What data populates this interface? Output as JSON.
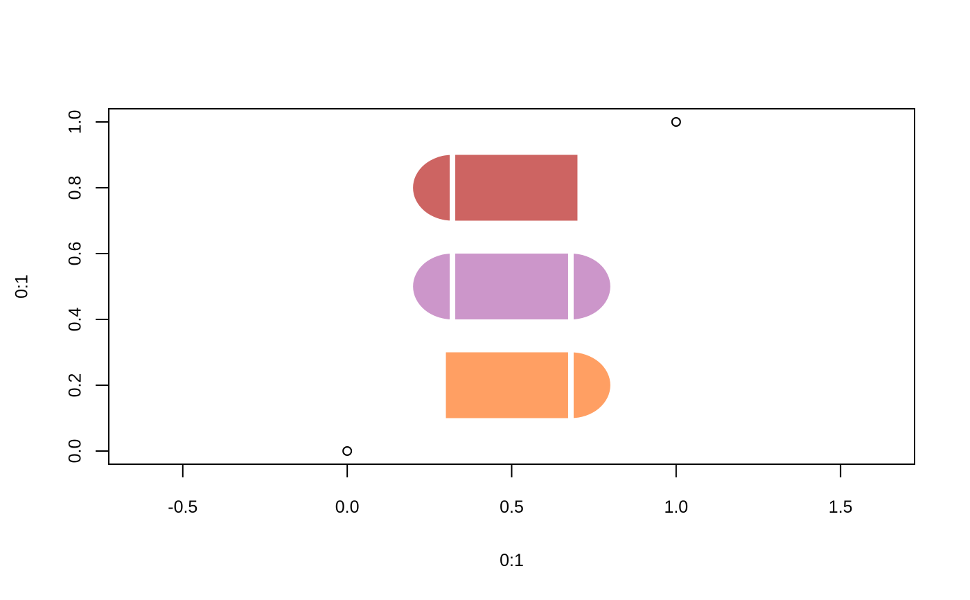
{
  "chart_data": {
    "type": "scatter",
    "xlabel": "0:1",
    "ylabel": "0:1",
    "xlim": [
      -0.725,
      1.725
    ],
    "ylim": [
      -0.04,
      1.04
    ],
    "x_ticks": [
      -0.5,
      0.0,
      0.5,
      1.0,
      1.5
    ],
    "x_tick_labels": [
      "-0.5",
      "0.0",
      "0.5",
      "1.0",
      "1.5"
    ],
    "y_ticks": [
      0.0,
      0.2,
      0.4,
      0.6,
      0.8,
      1.0
    ],
    "y_tick_labels": [
      "0.0",
      "0.2",
      "0.4",
      "0.6",
      "0.8",
      "1.0"
    ],
    "points": [
      {
        "x": 0,
        "y": 0
      },
      {
        "x": 1,
        "y": 1
      }
    ],
    "shapes": [
      {
        "name": "top",
        "x_range": [
          0.2,
          0.7
        ],
        "y_range": [
          0.7,
          0.9
        ],
        "rounded_left": true,
        "rounded_right": false,
        "color": "#CD6462"
      },
      {
        "name": "middle",
        "x_range": [
          0.2,
          0.8
        ],
        "y_range": [
          0.4,
          0.6
        ],
        "rounded_left": true,
        "rounded_right": true,
        "color": "#CC96CA"
      },
      {
        "name": "bottom",
        "x_range": [
          0.3,
          0.8
        ],
        "y_range": [
          0.1,
          0.3
        ],
        "rounded_left": false,
        "rounded_right": true,
        "color": "#FF9F63"
      }
    ],
    "grid": false,
    "legend": "none"
  }
}
